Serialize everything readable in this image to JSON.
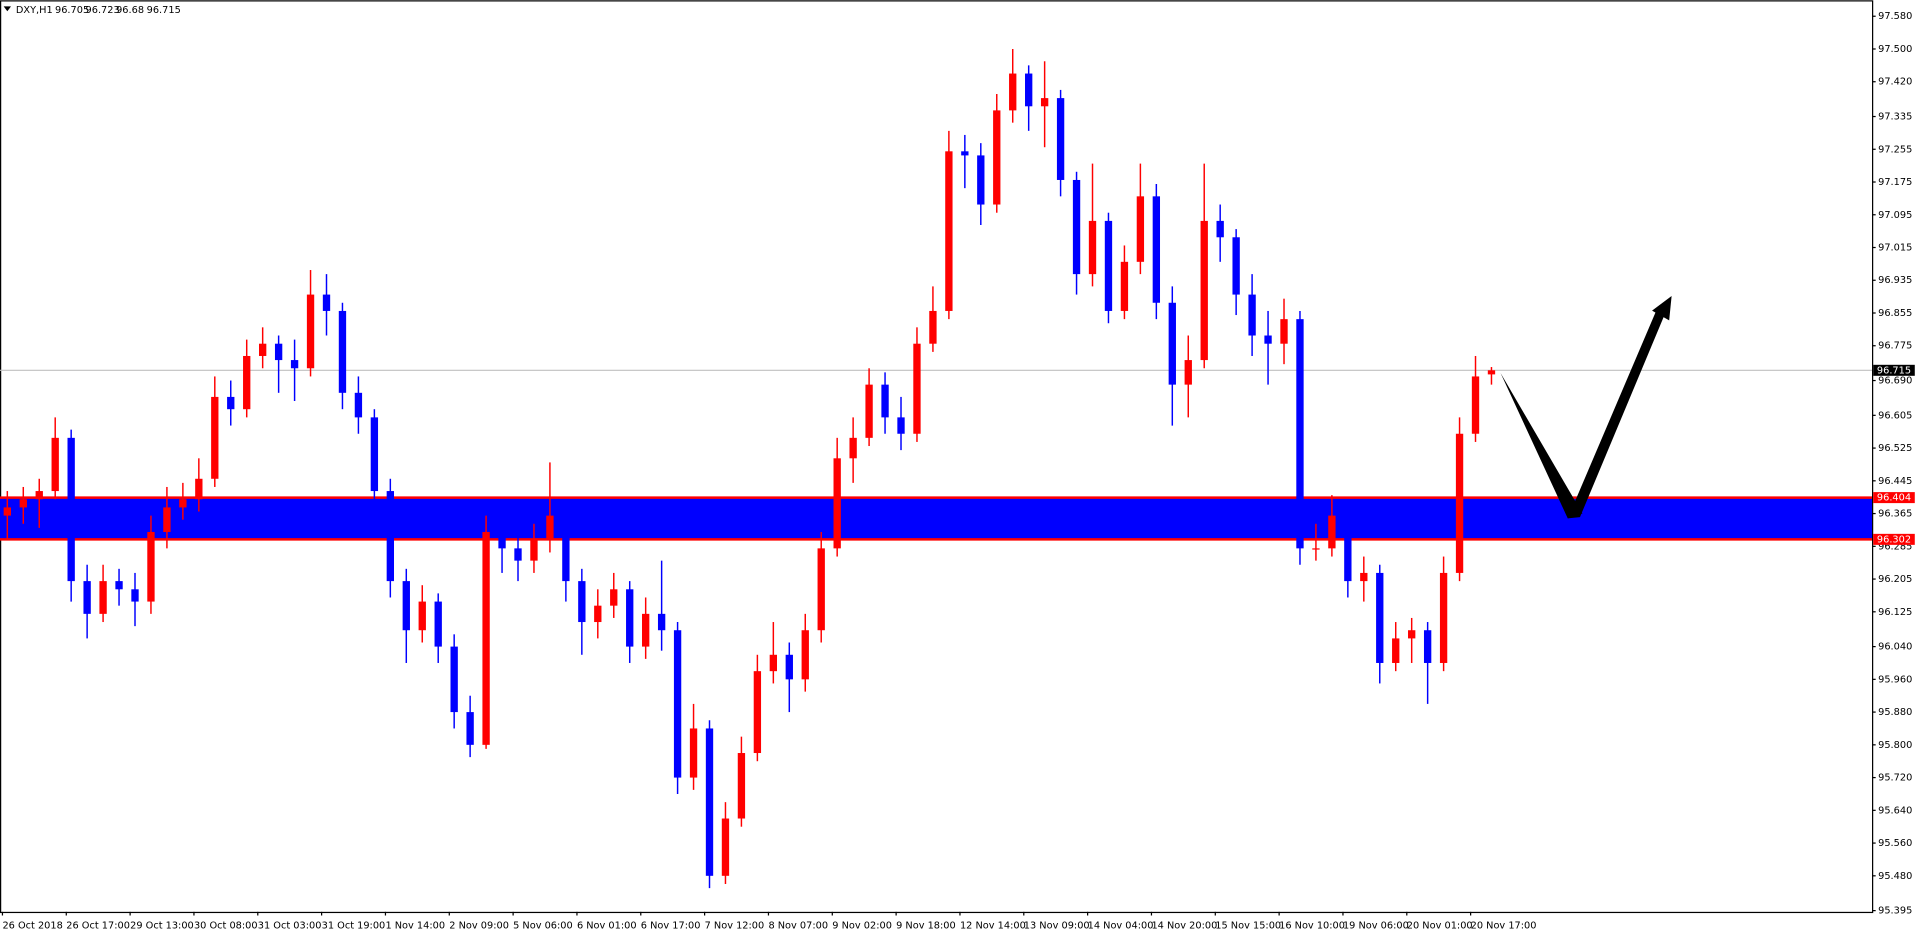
{
  "chart_data": {
    "type": "candlestick",
    "symbol": "DXY,H1",
    "categories": [
      "26 Oct 2018",
      null,
      null,
      null,
      "26 Oct 17:00",
      null,
      null,
      null,
      "29 Oct 13:00",
      null,
      null,
      null,
      "30 Oct 08:00",
      null,
      null,
      null,
      "31 Oct 03:00",
      null,
      null,
      null,
      "31 Oct 19:00",
      null,
      null,
      null,
      "1 Nov 14:00",
      null,
      null,
      null,
      "2 Nov 09:00",
      null,
      null,
      null,
      "5 Nov 06:00",
      null,
      null,
      null,
      "6 Nov 01:00",
      null,
      null,
      null,
      "6 Nov 17:00",
      null,
      null,
      null,
      "7 Nov 12:00",
      null,
      null,
      null,
      "8 Nov 07:00",
      null,
      null,
      null,
      "9 Nov 02:00",
      null,
      null,
      null,
      "9 Nov 18:00",
      null,
      null,
      null,
      "12 Nov 14:00",
      null,
      null,
      null,
      "13 Nov 09:00",
      null,
      null,
      null,
      "14 Nov 04:00",
      null,
      null,
      null,
      "14 Nov 20:00",
      null,
      null,
      null,
      "15 Nov 15:00",
      null,
      null,
      null,
      "16 Nov 10:00",
      null,
      null,
      null,
      "19 Nov 06:00",
      null,
      null,
      null,
      "20 Nov 01:00",
      null,
      null,
      null,
      "20 Nov 17:00",
      null
    ],
    "candles": [
      [
        96.36,
        96.42,
        96.3,
        96.38
      ],
      [
        96.38,
        96.43,
        96.34,
        96.4
      ],
      [
        96.4,
        96.45,
        96.33,
        96.42
      ],
      [
        96.42,
        96.6,
        96.4,
        96.55
      ],
      [
        96.55,
        96.57,
        96.15,
        96.2
      ],
      [
        96.2,
        96.24,
        96.06,
        96.12
      ],
      [
        96.12,
        96.24,
        96.1,
        96.2
      ],
      [
        96.2,
        96.23,
        96.14,
        96.18
      ],
      [
        96.18,
        96.22,
        96.09,
        96.15
      ],
      [
        96.15,
        96.36,
        96.12,
        96.32
      ],
      [
        96.32,
        96.43,
        96.28,
        96.38
      ],
      [
        96.38,
        96.44,
        96.35,
        96.4
      ],
      [
        96.4,
        96.5,
        96.37,
        96.45
      ],
      [
        96.45,
        96.7,
        96.43,
        96.65
      ],
      [
        96.65,
        96.69,
        96.58,
        96.62
      ],
      [
        96.62,
        96.79,
        96.6,
        96.75
      ],
      [
        96.75,
        96.82,
        96.72,
        96.78
      ],
      [
        96.78,
        96.8,
        96.66,
        96.74
      ],
      [
        96.74,
        96.79,
        96.64,
        96.72
      ],
      [
        96.72,
        96.96,
        96.7,
        96.9
      ],
      [
        96.9,
        96.95,
        96.8,
        96.86
      ],
      [
        96.86,
        96.88,
        96.62,
        96.66
      ],
      [
        96.66,
        96.7,
        96.56,
        96.6
      ],
      [
        96.6,
        96.62,
        96.38,
        96.42
      ],
      [
        96.42,
        96.45,
        96.16,
        96.2
      ],
      [
        96.2,
        96.23,
        96.0,
        96.08
      ],
      [
        96.08,
        96.19,
        96.05,
        96.15
      ],
      [
        96.15,
        96.17,
        96.0,
        96.04
      ],
      [
        96.04,
        96.07,
        95.84,
        95.88
      ],
      [
        95.88,
        95.92,
        95.77,
        95.8
      ],
      [
        95.8,
        96.36,
        95.79,
        96.32
      ],
      [
        96.32,
        96.34,
        96.22,
        96.28
      ],
      [
        96.28,
        96.31,
        96.2,
        96.25
      ],
      [
        96.25,
        96.34,
        96.22,
        96.3
      ],
      [
        96.3,
        96.49,
        96.27,
        96.36
      ],
      [
        96.36,
        96.38,
        96.15,
        96.2
      ],
      [
        96.2,
        96.23,
        96.02,
        96.1
      ],
      [
        96.1,
        96.18,
        96.06,
        96.14
      ],
      [
        96.14,
        96.22,
        96.11,
        96.18
      ],
      [
        96.18,
        96.2,
        96.0,
        96.04
      ],
      [
        96.04,
        96.16,
        96.01,
        96.12
      ],
      [
        96.12,
        96.25,
        96.03,
        96.08
      ],
      [
        96.08,
        96.1,
        95.68,
        95.72
      ],
      [
        95.72,
        95.9,
        95.69,
        95.84
      ],
      [
        95.84,
        95.86,
        95.45,
        95.48
      ],
      [
        95.48,
        95.66,
        95.46,
        95.62
      ],
      [
        95.62,
        95.82,
        95.6,
        95.78
      ],
      [
        95.78,
        96.02,
        95.76,
        95.98
      ],
      [
        95.98,
        96.1,
        95.95,
        96.02
      ],
      [
        96.02,
        96.05,
        95.88,
        95.96
      ],
      [
        95.96,
        96.12,
        95.93,
        96.08
      ],
      [
        96.08,
        96.32,
        96.05,
        96.28
      ],
      [
        96.28,
        96.55,
        96.26,
        96.5
      ],
      [
        96.5,
        96.6,
        96.44,
        96.55
      ],
      [
        96.55,
        96.72,
        96.53,
        96.68
      ],
      [
        96.68,
        96.71,
        96.56,
        96.6
      ],
      [
        96.6,
        96.65,
        96.52,
        96.56
      ],
      [
        96.56,
        96.82,
        96.54,
        96.78
      ],
      [
        96.78,
        96.92,
        96.76,
        96.86
      ],
      [
        96.86,
        97.3,
        96.84,
        97.25
      ],
      [
        97.25,
        97.29,
        97.16,
        97.24
      ],
      [
        97.24,
        97.27,
        97.07,
        97.12
      ],
      [
        97.12,
        97.39,
        97.1,
        97.35
      ],
      [
        97.35,
        97.5,
        97.32,
        97.44
      ],
      [
        97.44,
        97.46,
        97.3,
        97.36
      ],
      [
        97.36,
        97.47,
        97.26,
        97.38
      ],
      [
        97.38,
        97.4,
        97.14,
        97.18
      ],
      [
        97.18,
        97.2,
        96.9,
        96.95
      ],
      [
        96.95,
        97.22,
        96.92,
        97.08
      ],
      [
        97.08,
        97.1,
        96.83,
        96.86
      ],
      [
        96.86,
        97.02,
        96.84,
        96.98
      ],
      [
        96.98,
        97.22,
        96.95,
        97.14
      ],
      [
        97.14,
        97.17,
        96.84,
        96.88
      ],
      [
        96.88,
        96.92,
        96.58,
        96.68
      ],
      [
        96.68,
        96.8,
        96.6,
        96.74
      ],
      [
        96.74,
        97.22,
        96.72,
        97.08
      ],
      [
        97.08,
        97.12,
        96.98,
        97.04
      ],
      [
        97.04,
        97.06,
        96.85,
        96.9
      ],
      [
        96.9,
        96.95,
        96.75,
        96.8
      ],
      [
        96.8,
        96.86,
        96.68,
        96.78
      ],
      [
        96.78,
        96.89,
        96.73,
        96.84
      ],
      [
        96.84,
        96.86,
        96.24,
        96.28
      ],
      [
        96.28,
        96.34,
        96.25,
        96.28
      ],
      [
        96.28,
        96.41,
        96.26,
        96.36
      ],
      [
        96.36,
        96.38,
        96.16,
        96.2
      ],
      [
        96.2,
        96.26,
        96.15,
        96.22
      ],
      [
        96.22,
        96.24,
        95.95,
        96.0
      ],
      [
        96.0,
        96.1,
        95.98,
        96.06
      ],
      [
        96.06,
        96.11,
        96.0,
        96.08
      ],
      [
        96.08,
        96.1,
        95.9,
        96.0
      ],
      [
        96.0,
        96.26,
        95.98,
        96.22
      ],
      [
        96.22,
        96.6,
        96.2,
        96.56
      ],
      [
        96.56,
        96.75,
        96.54,
        96.7
      ],
      [
        96.705,
        96.723,
        96.68,
        96.715
      ]
    ],
    "up_color": "#ff0000",
    "down_color": "#0000ff",
    "zone": [
      96.302,
      96.404
    ],
    "zone_color": "#0000ff",
    "zone_line_color": "#ff0000",
    "ylim": [
      95.392,
      97.619
    ],
    "yticks": [
      {
        "value": 97.58,
        "label": "97.580"
      },
      {
        "value": 97.5,
        "label": "97.500"
      },
      {
        "value": 97.42,
        "label": "97.420"
      },
      {
        "value": 97.335,
        "label": "97.335"
      },
      {
        "value": 97.255,
        "label": "97.255"
      },
      {
        "value": 97.175,
        "label": "97.175"
      },
      {
        "value": 97.095,
        "label": "97.095"
      },
      {
        "value": 97.015,
        "label": "97.015"
      },
      {
        "value": 96.935,
        "label": "96.935"
      },
      {
        "value": 96.855,
        "label": "96.855"
      },
      {
        "value": 96.775,
        "label": "96.775"
      },
      {
        "value": 96.69,
        "label": "96.690"
      },
      {
        "value": 96.605,
        "label": "96.605"
      },
      {
        "value": 96.525,
        "label": "96.525"
      },
      {
        "value": 96.445,
        "label": "96.445"
      },
      {
        "value": 96.365,
        "label": "96.365"
      },
      {
        "value": 96.285,
        "label": "96.285"
      },
      {
        "value": 96.205,
        "label": "96.205"
      },
      {
        "value": 96.125,
        "label": "96.125"
      },
      {
        "value": 96.04,
        "label": "96.040"
      },
      {
        "value": 95.96,
        "label": "95.960"
      },
      {
        "value": 95.88,
        "label": "95.880"
      },
      {
        "value": 95.8,
        "label": "95.800"
      },
      {
        "value": 95.72,
        "label": "95.720"
      },
      {
        "value": 95.64,
        "label": "95.640"
      },
      {
        "value": 95.56,
        "label": "95.560"
      },
      {
        "value": 95.48,
        "label": "95.480"
      },
      {
        "value": 95.395,
        "label": "95.395"
      }
    ]
  }
}
